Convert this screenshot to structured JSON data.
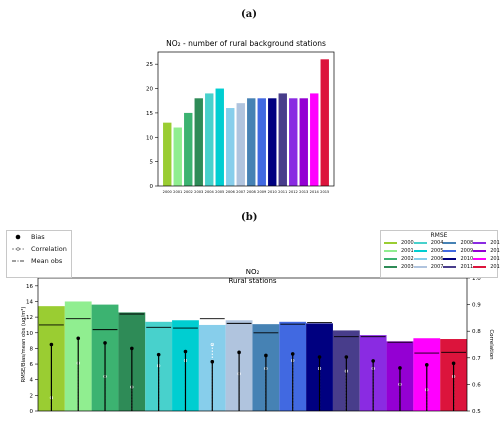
{
  "panel_labels": {
    "a": "(a)",
    "b": "(b)"
  },
  "chart_data": [
    {
      "type": "bar",
      "title": "NO₂ - number of rural background stations",
      "categories": [
        "2000",
        "2001",
        "2002",
        "2003",
        "2004",
        "2005",
        "2006",
        "2007",
        "2008",
        "2009",
        "2010",
        "2011",
        "2012",
        "2013",
        "2014",
        "2015"
      ],
      "values": [
        13,
        12,
        15,
        18,
        19,
        20,
        16,
        17,
        18,
        18,
        18,
        19,
        18,
        18,
        19,
        26
      ],
      "colors": [
        "#9acd32",
        "#90ee90",
        "#3cb371",
        "#2e8b57",
        "#48d1cc",
        "#00ced1",
        "#87ceeb",
        "#b0c4de",
        "#4682b4",
        "#4169e1",
        "#000080",
        "#483d8b",
        "#8a2be2",
        "#9400d3",
        "#ff00ff",
        "#dc143c"
      ],
      "yticks": [
        0,
        5,
        10,
        15,
        20,
        25
      ],
      "ylim": [
        0,
        27.5
      ],
      "xlabel": "",
      "ylabel": ""
    },
    {
      "type": "bar",
      "title": "NO₂",
      "subtitle": "Rural stations",
      "categories": [
        "2000",
        "2001",
        "2002",
        "2003",
        "2004",
        "2005",
        "2006",
        "2007",
        "2008",
        "2009",
        "2010",
        "2011",
        "2012",
        "2013",
        "2014",
        "2015"
      ],
      "rmse": [
        13.4,
        14.0,
        13.6,
        12.6,
        11.4,
        11.6,
        11.0,
        11.6,
        11.1,
        11.4,
        11.2,
        10.3,
        9.7,
        8.9,
        9.3,
        9.2
      ],
      "mean_obs": [
        11.0,
        11.8,
        10.4,
        12.4,
        10.7,
        10.6,
        11.8,
        11.2,
        10.0,
        11.1,
        11.3,
        9.5,
        9.5,
        8.8,
        7.4,
        7.5
      ],
      "bias": [
        8.5,
        9.3,
        8.7,
        8.0,
        7.2,
        7.6,
        6.3,
        7.5,
        7.1,
        7.3,
        6.9,
        6.9,
        6.4,
        5.5,
        5.9,
        6.1
      ],
      "correlation": [
        0.55,
        0.68,
        0.63,
        0.59,
        0.67,
        0.69,
        0.75,
        0.64,
        0.66,
        0.69,
        0.66,
        0.65,
        0.66,
        0.6,
        0.58,
        0.63
      ],
      "colors": [
        "#9acd32",
        "#90ee90",
        "#3cb371",
        "#2e8b57",
        "#48d1cc",
        "#00ced1",
        "#87ceeb",
        "#b0c4de",
        "#4682b4",
        "#4169e1",
        "#000080",
        "#483d8b",
        "#8a2be2",
        "#9400d3",
        "#ff00ff",
        "#dc143c"
      ],
      "ylabel": "RMSE/Bias/mean obs (ug/m³)",
      "ylabel2": "Correlation",
      "ylim": [
        0,
        17
      ],
      "yticks": [
        0,
        2,
        4,
        6,
        8,
        10,
        12,
        14,
        16
      ],
      "ylim2": [
        0.5,
        1.0
      ],
      "yticks2": [
        "0.5",
        "0.6",
        "0.7",
        "0.8",
        "0.9",
        "1.0"
      ],
      "legend_markers": [
        {
          "label": "Bias",
          "style": "dot"
        },
        {
          "label": "Correlation",
          "style": "dash"
        },
        {
          "label": "Mean obs",
          "style": "dashdot"
        }
      ],
      "legend_title": "RMSE",
      "legend_placement": "top-right"
    }
  ]
}
